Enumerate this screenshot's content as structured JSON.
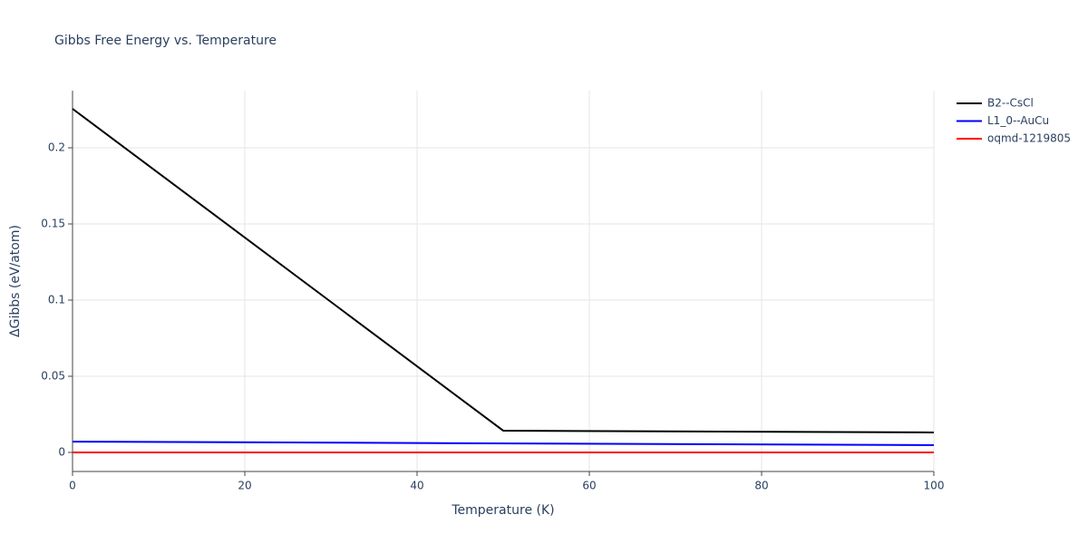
{
  "chart_data": {
    "type": "line",
    "title": "Gibbs Free Energy vs. Temperature",
    "x_label": "Temperature (K)",
    "y_label": "ΔGibbs (eV/atom)",
    "series": [
      {
        "name": "B2--CsCl",
        "color": "#000000",
        "x": [
          0,
          50,
          100
        ],
        "values": [
          0.2256,
          0.0143,
          0.0131
        ]
      },
      {
        "name": "L1_0--AuCu",
        "color": "#0000ff",
        "x": [
          0,
          100
        ],
        "values": [
          0.0071,
          0.0048
        ]
      },
      {
        "name": "oqmd-1219805",
        "color": "#ff0000",
        "x": [
          0,
          100
        ],
        "values": [
          0,
          0
        ]
      }
    ],
    "xlim": [
      0,
      100
    ],
    "xticks": [
      0,
      20,
      40,
      60,
      80,
      100
    ],
    "ylim": [
      -0.0125,
      0.2375
    ],
    "yticks": [
      0,
      0.05,
      0.1,
      0.15,
      0.2
    ],
    "grid": true,
    "legend": "top-right"
  }
}
